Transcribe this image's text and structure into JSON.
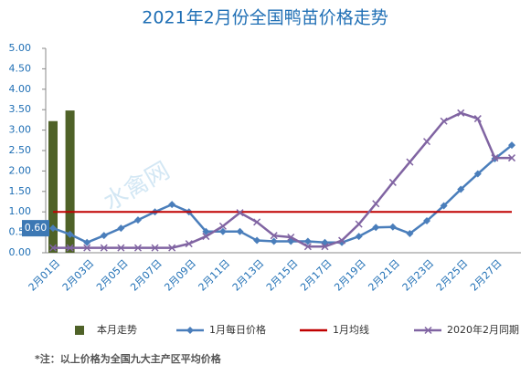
{
  "chart_data": {
    "type": "combo",
    "title": "2021年2月份全国鸭苗价格走势",
    "watermark": "水禽网",
    "footnote": "*注：以上价格为全国九大主产区平均价格",
    "categories": [
      "2月01日",
      null,
      "2月03日",
      null,
      "2月05日",
      null,
      "2月07日",
      null,
      "2月09日",
      null,
      "2月11日",
      null,
      "2月13日",
      null,
      "2月15日",
      null,
      "2月17日",
      null,
      "2月19日",
      null,
      "2月21日",
      null,
      "2月23日",
      null,
      "2月25日",
      null,
      "2月27日",
      null
    ],
    "ylim": [
      0,
      5
    ],
    "yticks": [
      {
        "value": 0,
        "label": "0.00"
      },
      {
        "value": 0.5,
        "label": "0.50"
      },
      {
        "value": 1,
        "label": "1.00"
      },
      {
        "value": 1.5,
        "label": "1.50"
      },
      {
        "value": 2,
        "label": "2.00"
      },
      {
        "value": 2.5,
        "label": "2.50"
      },
      {
        "value": 3,
        "label": "3.00"
      },
      {
        "value": 3.5,
        "label": "3.50"
      },
      {
        "value": 4,
        "label": "4.00"
      },
      {
        "value": 4.5,
        "label": "4.50"
      },
      {
        "value": 5,
        "label": "5.00"
      }
    ],
    "series": [
      {
        "name": "本月走势",
        "type": "bar",
        "color": "#4f6228",
        "values": [
          3.22,
          3.48,
          null,
          null,
          null,
          null,
          null,
          null,
          null,
          null,
          null,
          null,
          null,
          null,
          null,
          null,
          null,
          null,
          null,
          null,
          null,
          null,
          null,
          null,
          null,
          null,
          null,
          null
        ]
      },
      {
        "name": "1月每日价格",
        "type": "line",
        "marker": "diamond",
        "color": "#4a7ebb",
        "values": [
          0.6,
          0.45,
          0.25,
          0.42,
          0.6,
          0.8,
          1.0,
          1.18,
          1.0,
          0.52,
          0.52,
          0.52,
          0.3,
          0.28,
          0.28,
          0.28,
          0.25,
          0.25,
          0.4,
          0.62,
          0.63,
          0.47,
          0.78,
          1.15,
          1.55,
          1.93,
          2.3,
          2.63
        ],
        "value_labels": [
          "0.60",
          null,
          null,
          null,
          null,
          null,
          null,
          null,
          null,
          null,
          null,
          null,
          null,
          null,
          null,
          null,
          null,
          null,
          null,
          null,
          null,
          null,
          null,
          null,
          null,
          null,
          null,
          null
        ]
      },
      {
        "name": "1月均线",
        "type": "line",
        "marker": "none",
        "color": "#c00000",
        "values": [
          1,
          1,
          1,
          1,
          1,
          1,
          1,
          1,
          1,
          1,
          1,
          1,
          1,
          1,
          1,
          1,
          1,
          1,
          1,
          1,
          1,
          1,
          1,
          1,
          1,
          1,
          1,
          1
        ]
      },
      {
        "name": "2020年2月同期",
        "type": "line",
        "marker": "x",
        "color": "#8064a2",
        "values": [
          0.12,
          0.12,
          0.12,
          0.12,
          0.12,
          0.12,
          0.12,
          0.12,
          0.22,
          0.4,
          0.65,
          0.98,
          0.75,
          0.42,
          0.38,
          0.15,
          0.15,
          0.3,
          0.7,
          1.2,
          1.72,
          2.22,
          2.72,
          3.22,
          3.42,
          3.28,
          2.32,
          2.32
        ]
      }
    ]
  }
}
